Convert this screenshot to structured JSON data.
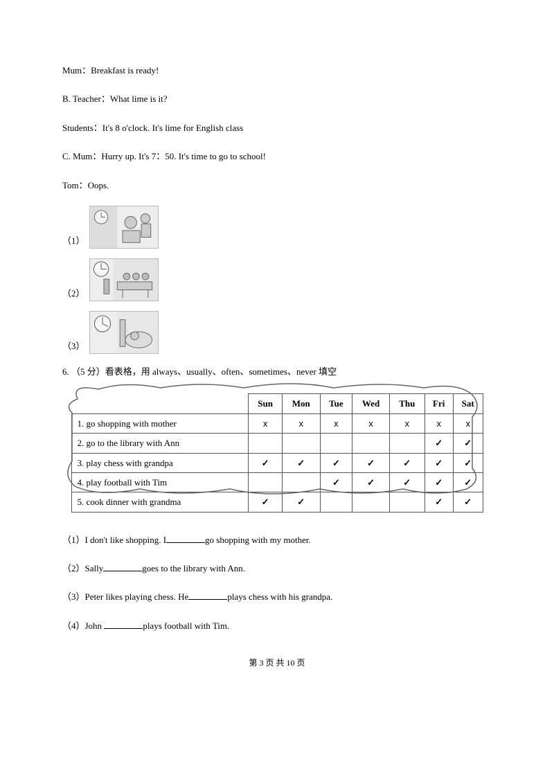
{
  "dialogue": {
    "a_mum": "Mum：Breakfast is ready!",
    "b_teacher": "B. Teacher：What lime is it?",
    "b_students": "Students：It's 8 o'clock. It's lime for English class",
    "c_mum": "C. Mum：Hurry up. It's 7：50. It's time to go to school!",
    "c_tom": "Tom：Oops."
  },
  "picture_labels": {
    "p1": "（1）",
    "p2": "（2）",
    "p3": "（3）"
  },
  "q6": {
    "heading": "6. （5 分）看表格，用 always、usually、often、sometimes、never 填空",
    "headers": [
      "",
      "Sun",
      "Mon",
      "Tue",
      "Wed",
      "Thu",
      "Fri",
      "Sat"
    ],
    "rows": [
      {
        "act": "1. go shopping with mother",
        "cells": [
          "x",
          "x",
          "x",
          "x",
          "x",
          "x",
          "x"
        ]
      },
      {
        "act": "2. go to the library with Ann",
        "cells": [
          "",
          "",
          "",
          "",
          "",
          "✓",
          "✓"
        ]
      },
      {
        "act": "3. play chess with grandpa",
        "cells": [
          "✓",
          "✓",
          "✓",
          "✓",
          "✓",
          "✓",
          "✓"
        ]
      },
      {
        "act": "4. play football with Tim",
        "cells": [
          "",
          "",
          "✓",
          "✓",
          "✓",
          "✓",
          "✓"
        ]
      },
      {
        "act": "5. cook dinner with grandma",
        "cells": [
          "✓",
          "✓",
          "",
          "",
          "",
          "✓",
          "✓"
        ]
      }
    ],
    "fills": {
      "f1a": "（1）I don't like shopping. I",
      "f1b": "go shopping with my mother.",
      "f2a": "（2）Sally",
      "f2b": "goes to the library with Ann.",
      "f3a": "（3）Peter likes playing chess. He",
      "f3b": "plays chess with his grandpa.",
      "f4a": "（4）John ",
      "f4b": "plays football with Tim."
    }
  },
  "footer": "第 3 页 共 10 页"
}
